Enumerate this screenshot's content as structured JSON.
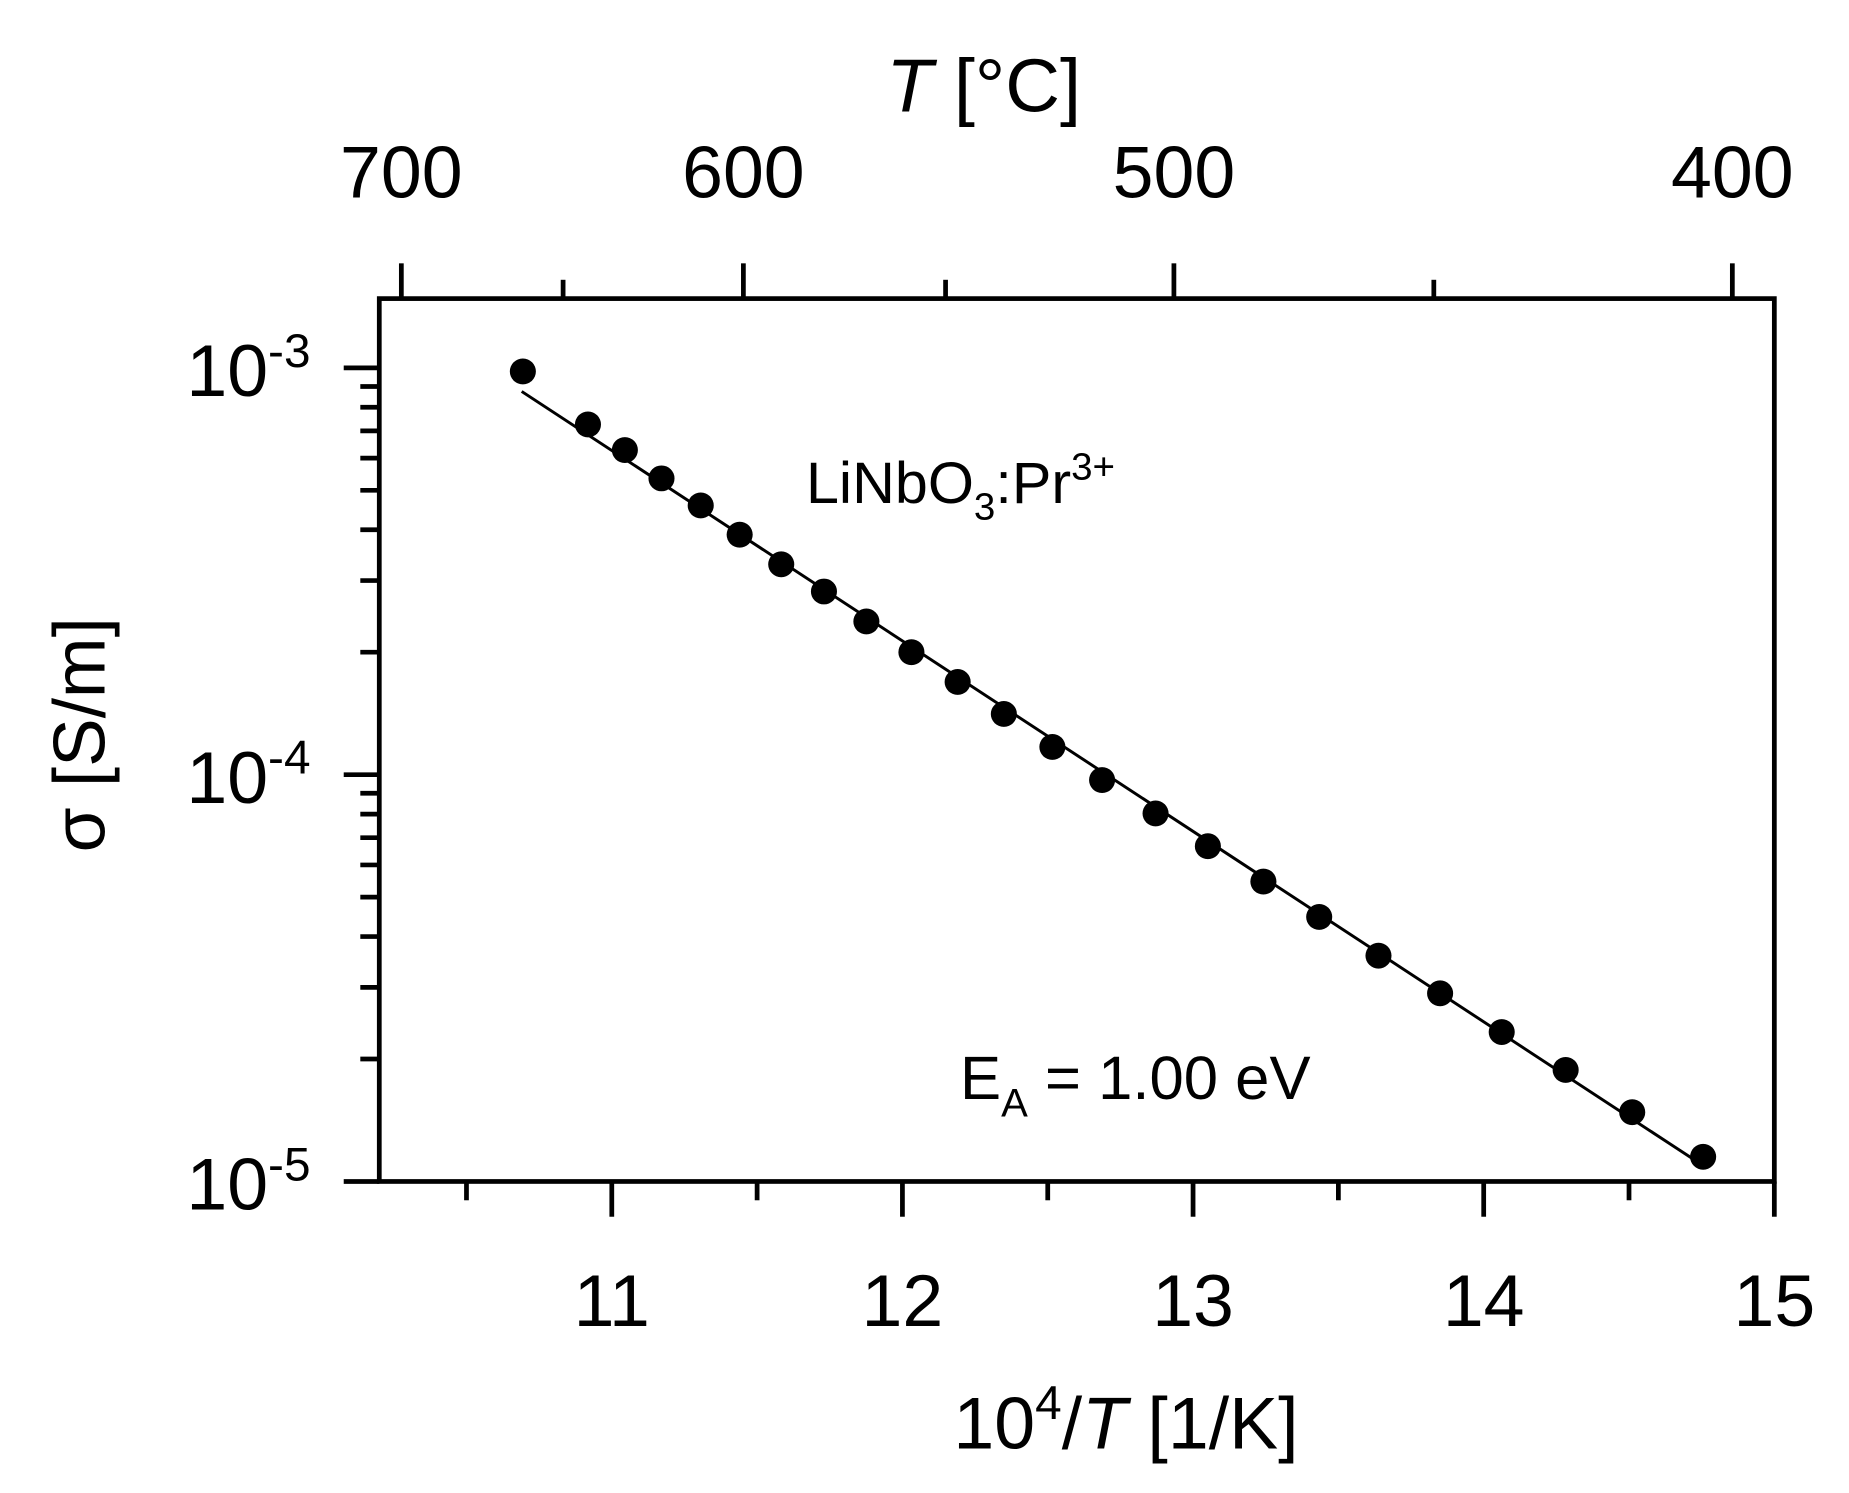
{
  "chart_data": {
    "type": "scatter",
    "x2label": [
      "T",
      " [°C]"
    ],
    "xlabel": [
      "10",
      "4",
      "/",
      "T",
      " [1/K]"
    ],
    "ylabel": "σ [S/m]",
    "annotations": [
      [
        "LiNbO",
        "3",
        ":Pr",
        "3+"
      ],
      [
        "E",
        "A",
        " = 1.00 eV"
      ]
    ],
    "xlim": [
      10.2,
      15
    ],
    "xticks": [
      11,
      12,
      13,
      14,
      15
    ],
    "xminor_ticks": [
      10.5,
      11.5,
      12.5,
      13.5,
      14.5
    ],
    "x2ticks": [
      700,
      600,
      500,
      400
    ],
    "x2minor_ticks": [
      650,
      550,
      450
    ],
    "ylim": [
      1e-05,
      0.00148
    ],
    "ylog": true,
    "yticks": [
      {
        "value": 1e-05,
        "label": "10",
        "exponent": "-5"
      },
      {
        "value": 0.0001,
        "label": "10",
        "exponent": "-4"
      },
      {
        "value": 0.001,
        "label": "10",
        "exponent": "-3"
      }
    ],
    "yminor_ticks": [
      2e-05,
      3e-05,
      4e-05,
      5e-05,
      6e-05,
      7e-05,
      8e-05,
      9e-05,
      0.0002,
      0.0003,
      0.0004,
      0.0005,
      0.0006,
      0.0007,
      0.0008,
      0.0009
    ],
    "grid": false,
    "series": [
      {
        "color": "#000000",
        "marker": "circle",
        "x": [
          10.694,
          10.918,
          11.045,
          11.171,
          11.306,
          11.44,
          11.583,
          11.73,
          11.876,
          12.031,
          12.19,
          12.349,
          12.516,
          12.687,
          12.871,
          13.051,
          13.242,
          13.434,
          13.638,
          13.85,
          14.062,
          14.282,
          14.511,
          14.755
        ],
        "values": [
          0.00098,
          0.000726,
          0.000628,
          0.000535,
          0.000459,
          0.000389,
          0.000329,
          0.000282,
          0.000238,
          0.0002,
          0.000169,
          0.000141,
          0.000117,
          9.7e-05,
          8.03e-05,
          6.67e-05,
          5.46e-05,
          4.47e-05,
          3.59e-05,
          2.9e-05,
          2.33e-05,
          1.88e-05,
          1.48e-05,
          1.15e-05
        ]
      },
      {
        "color": "#000000",
        "marker": "line",
        "x": [
          10.69,
          14.75
        ],
        "values": [
          0.000875,
          1.1e-05
        ]
      }
    ]
  }
}
